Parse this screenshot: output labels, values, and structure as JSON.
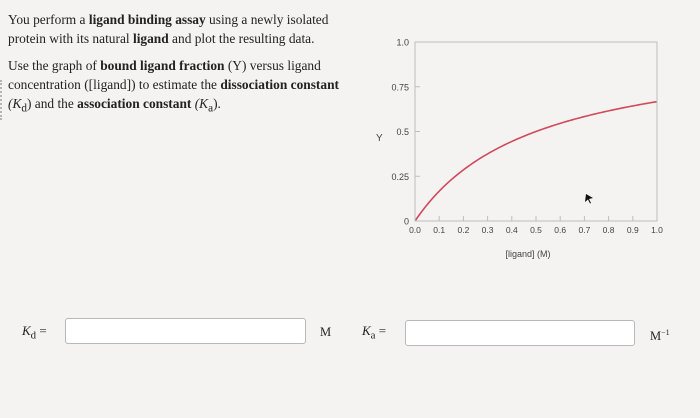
{
  "question": {
    "p1_text1": "You perform a ",
    "p1_bold1": "ligand binding assay",
    "p1_text2": " using a newly isolated protein with its natural ",
    "p1_bold2": "ligand",
    "p1_text3": " and plot the resulting data.",
    "p2_text1": "Use the graph of ",
    "p2_bold1": "bound ligand fraction",
    "p2_text2": " (Y) versus ligand concentration ([ligand]) to estimate the ",
    "p2_bold2": "dissociation constant",
    "p2_text3": " (K",
    "p2_sub1": "d",
    "p2_text4": ") and the ",
    "p2_bold3": "association constant",
    "p2_text5": " (K",
    "p2_sub2": "a",
    "p2_text6": ")."
  },
  "chart_data": {
    "type": "line",
    "ylabel": "Y",
    "xlabel": "[ligand] (M)",
    "x_ticks": [
      "0.0",
      "0.1",
      "0.2",
      "0.3",
      "0.4",
      "0.5",
      "0.6",
      "0.7",
      "0.8",
      "0.9",
      "1.0"
    ],
    "y_ticks": [
      "0",
      "0.25",
      "0.5",
      "0.75",
      "1.0"
    ],
    "xlim": [
      0,
      1.0
    ],
    "ylim": [
      0,
      1.0
    ],
    "curve": {
      "Kd": 0.5,
      "color": "#d04a5c"
    },
    "colors": {
      "axis": "#999999",
      "line": "#d04a5c"
    }
  },
  "answers": {
    "kd_label": "K",
    "kd_sub": "d",
    "kd_eq": "=",
    "kd_unit": "M",
    "kd_value": "",
    "ka_label": "K",
    "ka_sub": "a",
    "ka_eq": "=",
    "ka_unit": "M",
    "ka_unit_sup": "−1",
    "ka_value": ""
  }
}
